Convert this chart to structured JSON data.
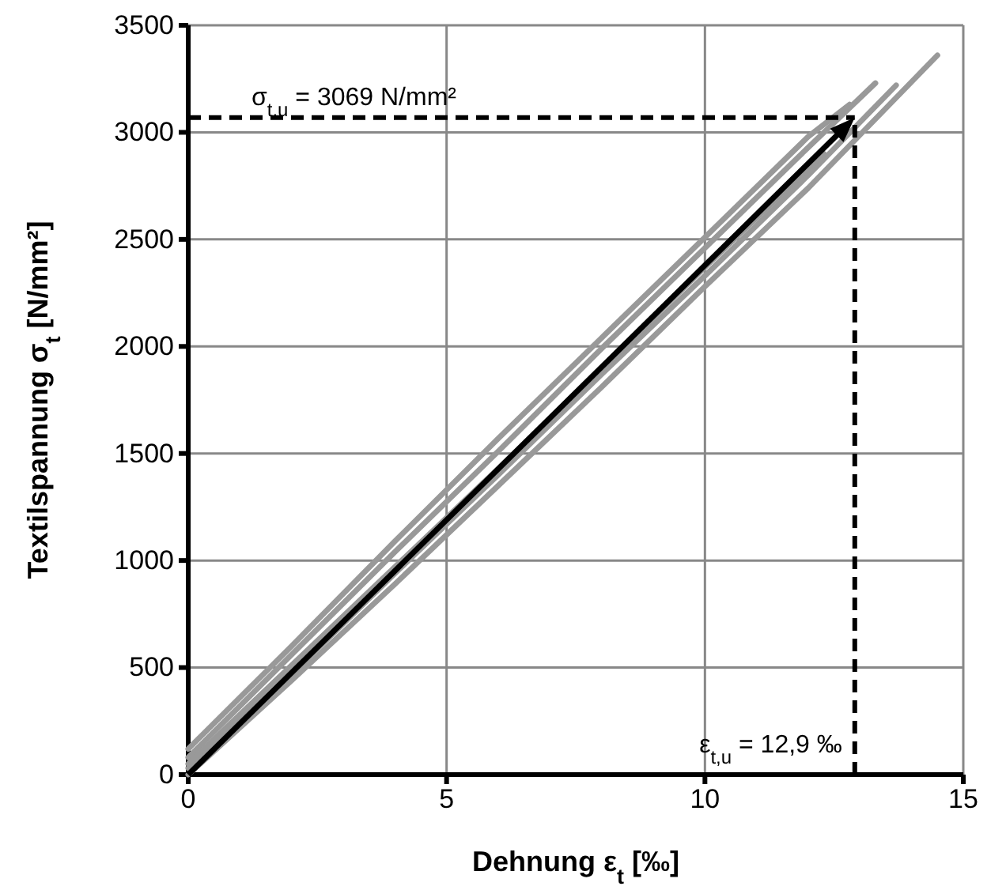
{
  "chart_data": {
    "type": "line",
    "xlabel": "Dehnung ε$_{t}$ [‰]",
    "ylabel": "Textilspannung σ$_{t}$ [N/mm²]",
    "xlim": [
      0,
      15
    ],
    "xticks": [
      0,
      5,
      10,
      15
    ],
    "ylim": [
      0,
      3500
    ],
    "yticks": [
      0,
      500,
      1000,
      1500,
      2000,
      2500,
      3000,
      3500
    ],
    "grid": true,
    "series": [
      {
        "color": "#999999",
        "x": [
          0,
          2,
          4,
          6,
          8,
          10,
          12,
          14.5
        ],
        "values": [
          0,
          440,
          890,
          1350,
          1810,
          2280,
          2740,
          3360
        ]
      },
      {
        "color": "#999999",
        "x": [
          0,
          2,
          4,
          6,
          8,
          10,
          12,
          13.7
        ],
        "values": [
          30,
          470,
          940,
          1400,
          1870,
          2330,
          2800,
          3220
        ]
      },
      {
        "color": "#999999",
        "x": [
          0,
          2,
          4,
          6,
          8,
          10,
          12,
          13.3
        ],
        "values": [
          80,
          560,
          1040,
          1510,
          1990,
          2460,
          2930,
          3230
        ]
      },
      {
        "color": "#999999",
        "x": [
          0,
          2,
          4,
          6,
          8,
          10,
          12,
          12.8
        ],
        "values": [
          120,
          600,
          1090,
          1570,
          2040,
          2510,
          2980,
          3130
        ]
      },
      {
        "color": "#999999",
        "x": [
          0,
          2,
          4,
          6,
          8,
          10,
          12.3
        ],
        "values": [
          50,
          510,
          970,
          1430,
          1900,
          2370,
          2900
        ]
      }
    ],
    "ref_lines": [
      {
        "axis": "x",
        "value": 12.9,
        "color": "#000000",
        "line_style": "dashed"
      },
      {
        "axis": "y",
        "value": 3069,
        "color": "#000000",
        "line_style": "dashed"
      }
    ],
    "annotations": [
      {
        "text": "σ$_{t,u}$ = 3069 N/mm²",
        "x": 0,
        "y": 3069
      },
      {
        "text": "ε$_{t,u}$ = 12,9 ‰",
        "x": 12.9,
        "y": 0
      }
    ]
  }
}
